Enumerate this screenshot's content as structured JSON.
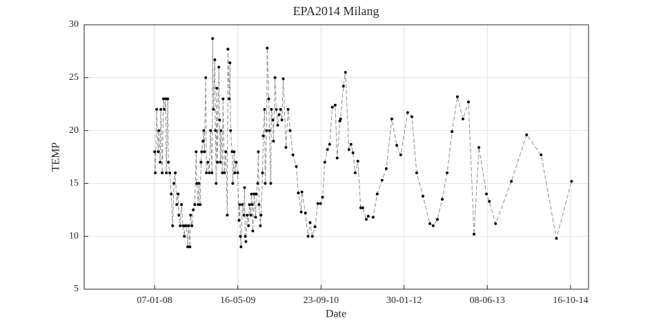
{
  "chart_data": {
    "type": "line",
    "title": "EPA2014 Milang",
    "xlabel": "Date",
    "ylabel": "TEMP",
    "x": [
      "2008-01-07",
      "2008-01-11",
      "2008-01-19",
      "2008-01-28",
      "2008-02-01",
      "2008-02-09",
      "2008-02-13",
      "2008-02-21",
      "2008-02-29",
      "2008-03-05",
      "2008-03-13",
      "2008-03-17",
      "2008-03-25",
      "2008-03-29",
      "2008-04-06",
      "2008-04-15",
      "2008-04-23",
      "2008-05-01",
      "2008-05-09",
      "2008-05-18",
      "2008-05-26",
      "2008-05-30",
      "2008-06-07",
      "2008-06-15",
      "2008-06-24",
      "2008-07-02",
      "2008-07-06",
      "2008-07-14",
      "2008-07-22",
      "2008-07-27",
      "2008-08-04",
      "2008-08-08",
      "2008-08-16",
      "2008-08-24",
      "2008-09-02",
      "2008-09-10",
      "2008-09-14",
      "2008-09-22",
      "2008-09-26",
      "2008-10-04",
      "2008-10-09",
      "2008-10-13",
      "2008-10-21",
      "2008-10-25",
      "2008-10-29",
      "2008-11-06",
      "2008-11-10",
      "2008-11-19",
      "2008-11-27",
      "2008-12-05",
      "2008-12-13",
      "2008-12-17",
      "2008-12-22",
      "2008-12-30",
      "2009-01-03",
      "2009-01-07",
      "2009-01-11",
      "2009-01-15",
      "2009-01-23",
      "2009-01-28",
      "2009-02-01",
      "2009-02-05",
      "2009-02-13",
      "2009-02-17",
      "2009-02-25",
      "2009-03-06",
      "2009-03-14",
      "2009-03-18",
      "2009-03-26",
      "2009-03-30",
      "2009-04-03",
      "2009-04-12",
      "2009-04-16",
      "2009-04-24",
      "2009-04-28",
      "2009-05-06",
      "2009-05-15",
      "2009-05-23",
      "2009-05-27",
      "2009-05-31",
      "2009-06-04",
      "2009-06-12",
      "2009-06-21",
      "2009-06-25",
      "2009-06-29",
      "2009-07-03",
      "2009-07-11",
      "2009-07-19",
      "2009-07-24",
      "2009-08-01",
      "2009-08-05",
      "2009-08-09",
      "2009-08-13",
      "2009-08-21",
      "2009-08-30",
      "2009-09-03",
      "2009-09-11",
      "2009-09-15",
      "2009-09-19",
      "2009-09-27",
      "2009-10-01",
      "2009-10-10",
      "2009-10-14",
      "2009-10-22",
      "2009-10-26",
      "2009-11-03",
      "2009-11-07",
      "2009-11-16",
      "2009-11-20",
      "2009-11-28",
      "2009-12-02",
      "2009-12-10",
      "2009-12-14",
      "2009-12-23",
      "2009-12-31",
      "2010-01-08",
      "2010-01-16",
      "2010-01-25",
      "2010-02-02",
      "2010-02-10",
      "2010-02-26",
      "2010-03-11",
      "2010-03-23",
      "2010-04-09",
      "2010-04-29",
      "2010-05-11",
      "2010-05-28",
      "2010-06-01",
      "2010-06-22",
      "2010-07-08",
      "2010-07-20",
      "2010-08-02",
      "2010-08-18",
      "2010-09-04",
      "2010-09-20",
      "2010-10-02",
      "2010-10-15",
      "2010-10-31",
      "2010-11-13",
      "2010-11-29",
      "2010-12-16",
      "2010-12-28",
      "2011-01-13",
      "2011-01-17",
      "2011-02-03",
      "2011-02-15",
      "2011-03-08",
      "2011-03-20",
      "2011-04-01",
      "2011-04-14",
      "2011-04-30",
      "2011-05-17",
      "2011-05-29",
      "2011-06-19",
      "2011-07-01",
      "2011-07-30",
      "2011-08-23",
      "2011-09-21",
      "2011-10-16",
      "2011-11-18",
      "2011-12-17",
      "2012-01-10",
      "2012-02-20",
      "2012-03-16",
      "2012-04-14",
      "2012-05-21",
      "2012-07-01",
      "2012-07-21",
      "2012-08-15",
      "2012-09-13",
      "2012-10-12",
      "2012-11-10",
      "2012-12-12",
      "2013-01-14",
      "2013-02-16",
      "2013-03-21",
      "2013-04-19",
      "2013-06-03",
      "2013-06-20",
      "2013-07-27",
      "2013-10-29",
      "2014-01-28",
      "2014-04-24",
      "2014-07-24",
      "2014-10-22"
    ],
    "series": [
      {
        "color": "#000000",
        "line_color": "#8c8c8c",
        "values": [
          18,
          16,
          22,
          18,
          20,
          17,
          22,
          16,
          23,
          22,
          23,
          16,
          23,
          17,
          16,
          14,
          11,
          15,
          16,
          13,
          14,
          12,
          11,
          13,
          11,
          10,
          11,
          11,
          9,
          11,
          9,
          12,
          11,
          12.5,
          13,
          18,
          15,
          13,
          15,
          13,
          17,
          18,
          19,
          20,
          18,
          25,
          16,
          17,
          16,
          20,
          16,
          28.7,
          22,
          26.7,
          20,
          15,
          24,
          17,
          26,
          21,
          17,
          20,
          16,
          23,
          16,
          18,
          12,
          27.7,
          23,
          26.4,
          20,
          18,
          15,
          18,
          16,
          17,
          16,
          11.5,
          13,
          10,
          9,
          13,
          12,
          14.6,
          10,
          9.5,
          12,
          11,
          13,
          12,
          14,
          13,
          10.5,
          14,
          11.8,
          14,
          15,
          18,
          13,
          11,
          12,
          16,
          19.5,
          22,
          15,
          20,
          27.8,
          23,
          20,
          15,
          22,
          21,
          19,
          25,
          22,
          20.5,
          21.5,
          22,
          21,
          24.9,
          18.4,
          22,
          20,
          17.7,
          16.6,
          14.1,
          12.3,
          14.2,
          12.2,
          10,
          11.3,
          10,
          10.9,
          13.1,
          13.1,
          13.7,
          17,
          18.2,
          18.7,
          22.2,
          22.4,
          17.4,
          20.9,
          21.1,
          24.2,
          25.5,
          18.2,
          18.7,
          17.9,
          16,
          17.1,
          12.7,
          12.7,
          11.6,
          11.9,
          11.8,
          14,
          15.3,
          16.4,
          21.1,
          18.6,
          17.7,
          21.7,
          21.3,
          16,
          13.8,
          11.2,
          11,
          11.6,
          13.5,
          16,
          19.9,
          23.2,
          21.1,
          22.7,
          10.2,
          18.4,
          14,
          13.3,
          11.2,
          15.2,
          19.6,
          17.7,
          9.8,
          15.2
        ]
      }
    ],
    "xlim": [
      "2006-11-14",
      "2015-01-31"
    ],
    "xticks": [
      {
        "value": "2008-01-07",
        "label": "07-01-08"
      },
      {
        "value": "2009-05-16",
        "label": "16-05-09"
      },
      {
        "value": "2010-09-23",
        "label": "23-09-10"
      },
      {
        "value": "2012-01-30",
        "label": "30-01-12"
      },
      {
        "value": "2013-06-08",
        "label": "08-06-13"
      },
      {
        "value": "2014-10-16",
        "label": "16-10-14"
      }
    ],
    "ylim": [
      5,
      30
    ],
    "yticks": [
      5,
      10,
      15,
      20,
      25,
      30
    ],
    "grid": true
  }
}
